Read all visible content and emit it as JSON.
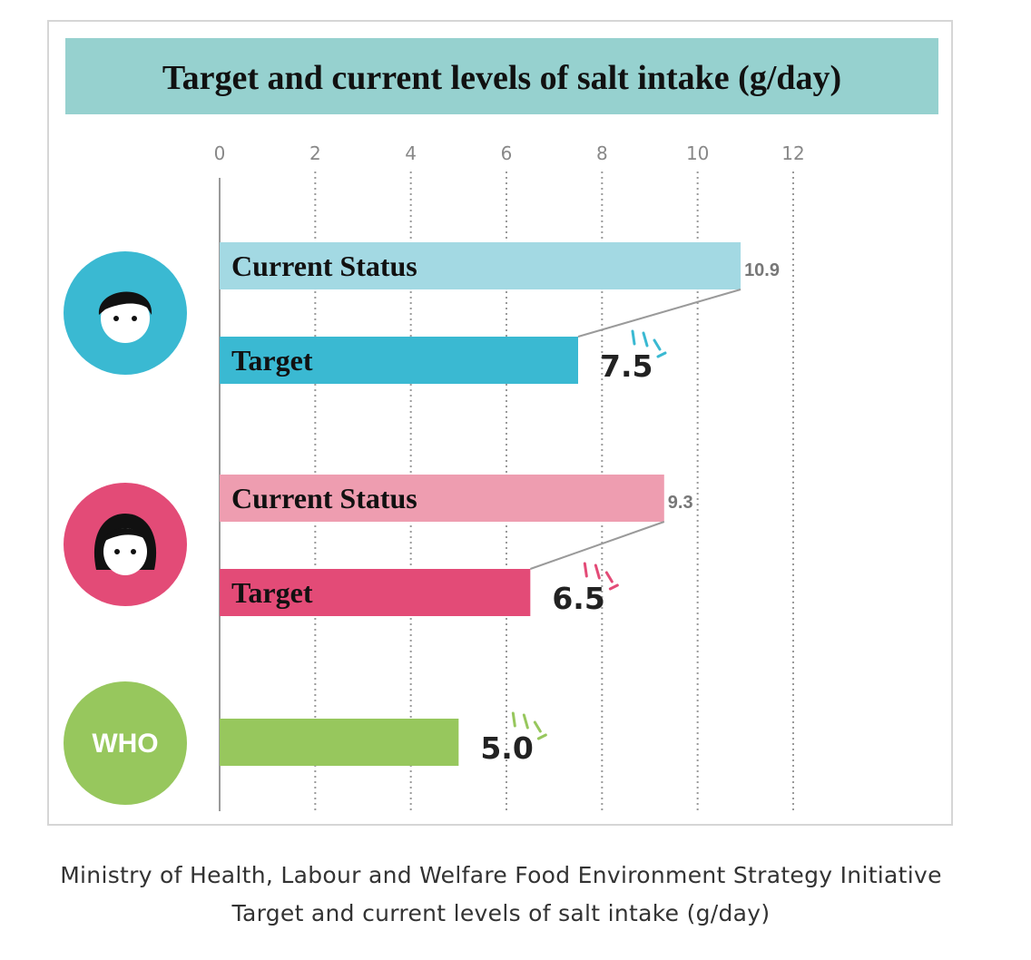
{
  "chart_data": {
    "type": "bar",
    "title": "Target and current levels of salt intake (g/day)",
    "xlim": [
      0,
      12
    ],
    "x_ticks": [
      "0",
      "2",
      "4",
      "6",
      "8",
      "10",
      "12"
    ],
    "grid": "vertical dotted",
    "groups": [
      {
        "icon": "boy-face-icon",
        "color_dark": "#3ab9d2",
        "color_light": "#a3d9e3",
        "bars": [
          {
            "label": "Current Status",
            "value": 10.9,
            "value_label": "10.9",
            "kind": "current"
          },
          {
            "label": "Target",
            "value": 7.5,
            "value_label": "7.5",
            "kind": "target"
          }
        ]
      },
      {
        "icon": "girl-face-icon",
        "color_dark": "#e34b77",
        "color_light": "#ee9db0",
        "bars": [
          {
            "label": "Current Status",
            "value": 9.3,
            "value_label": "9.3",
            "kind": "current"
          },
          {
            "label": "Target",
            "value": 6.5,
            "value_label": "6.5",
            "kind": "target"
          }
        ]
      },
      {
        "icon_text": "WHO",
        "color_dark": "#97c75d",
        "bars": [
          {
            "label": "",
            "value": 5.0,
            "value_label": "5.0",
            "kind": "target"
          }
        ]
      }
    ],
    "colors": {
      "title_band": "#96d1cf",
      "axis": "#9a9a9a",
      "grid": "#9a9a9a"
    }
  },
  "caption": {
    "line1": "Ministry of Health, Labour and Welfare Food Environment Strategy Initiative",
    "line2": "Target and current levels of salt intake (g/day)"
  }
}
